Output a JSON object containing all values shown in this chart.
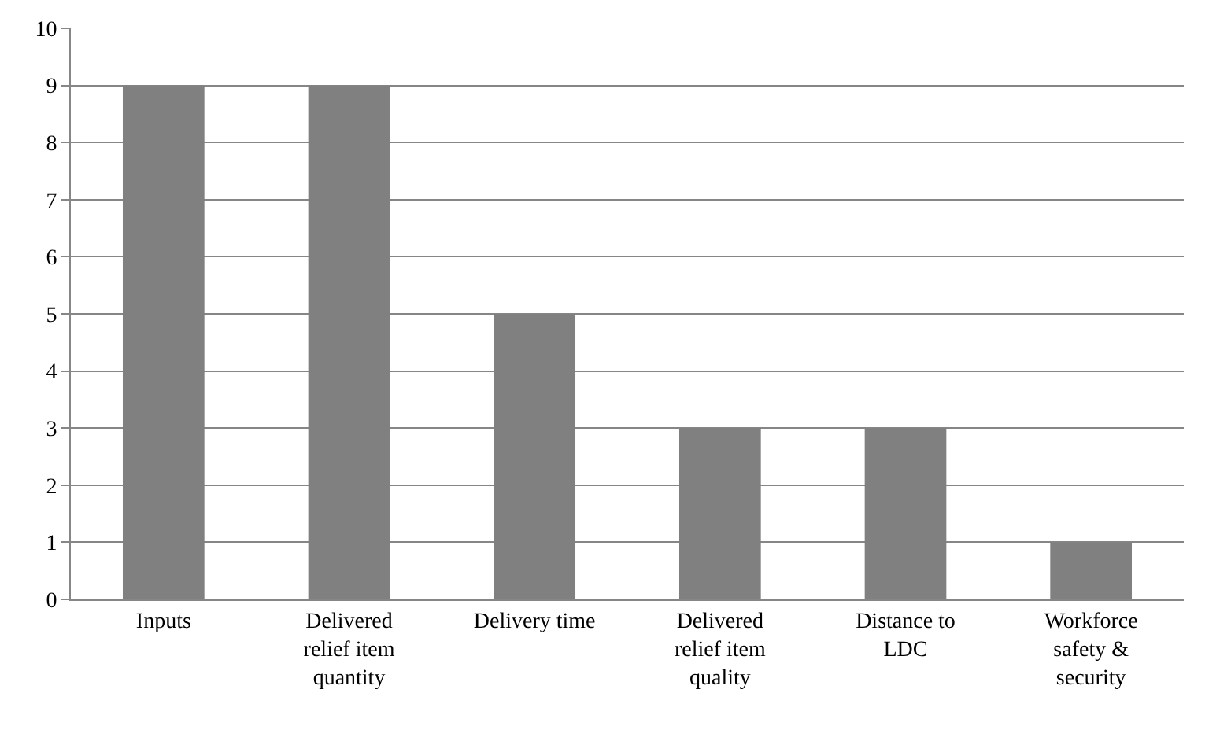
{
  "chart_data": {
    "type": "bar",
    "categories": [
      "Inputs",
      "Delivered relief item quantity",
      "Delivery time",
      "Delivered relief item quality",
      "Distance to LDC",
      "Workforce safety & security"
    ],
    "values": [
      9,
      9,
      5,
      3,
      3,
      1
    ],
    "color": "#808080",
    "ylim": [
      0,
      10
    ],
    "yticks": [
      0,
      1,
      2,
      3,
      4,
      5,
      6,
      7,
      8,
      9,
      10
    ],
    "grid": "y"
  }
}
